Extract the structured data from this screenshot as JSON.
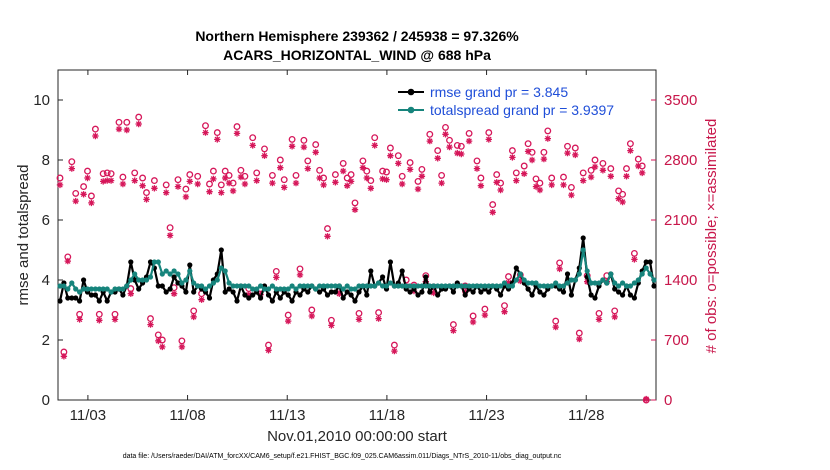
{
  "chart_data": {
    "type": "line",
    "title_line1": "Northern Hemisphere 239362 / 245938 = 97.326%",
    "title_line2": "ACARS_HORIZONTAL_WIND @ 688 hPa",
    "xlabel": "Nov.01,2010 00:00:00 start",
    "ylabel_left": "rmse and totalspread",
    "ylabel_right": "# of obs: o=possible; ×=assimilated",
    "xlim": [
      0.5,
      30.5
    ],
    "ylim_left": [
      0,
      11
    ],
    "ylim_right": [
      0,
      3850
    ],
    "x_ticks": [
      2,
      7,
      12,
      17,
      22,
      27
    ],
    "x_tick_labels": [
      "11/03",
      "11/08",
      "11/13",
      "11/18",
      "11/23",
      "11/28"
    ],
    "y_left_ticks": [
      0,
      2,
      4,
      6,
      8,
      10
    ],
    "y_right_ticks": [
      0,
      700,
      1400,
      2100,
      2800,
      3500
    ],
    "legend": [
      "rmse grand pr = 3.845",
      "totalspread grand pr = 3.9397"
    ],
    "colors": {
      "rmse": "#000000",
      "spread": "#16847c",
      "obs": "#d6175a",
      "axis": "#262626",
      "legend_text": "#1f4ed8"
    },
    "rmse": [
      3.3,
      3.9,
      3.4,
      3.4,
      3.4,
      3.3,
      4.0,
      3.6,
      3.5,
      3.5,
      3.3,
      3.6,
      3.3,
      3.6,
      3.6,
      3.7,
      3.5,
      3.8,
      4.6,
      4.0,
      3.7,
      3.9,
      4.1,
      4.6,
      4.4,
      3.8,
      3.8,
      3.6,
      3.7,
      4.1,
      3.9,
      3.8,
      3.6,
      4.5,
      3.6,
      3.8,
      3.7,
      3.6,
      3.4,
      4.0,
      4.2,
      5.0,
      3.6,
      3.7,
      3.6,
      3.3,
      3.8,
      3.5,
      3.4,
      3.5,
      3.6,
      3.4,
      3.8,
      3.5,
      3.3,
      3.6,
      3.4,
      3.6,
      3.5,
      3.3,
      3.6,
      3.5,
      3.7,
      3.6,
      3.8,
      3.7,
      3.6,
      3.7,
      3.5,
      3.6,
      3.6,
      3.8,
      3.4,
      3.6,
      3.5,
      3.3,
      3.6,
      3.8,
      3.5,
      4.3,
      3.8,
      3.9,
      4.1,
      3.7,
      4.6,
      3.8,
      3.9,
      4.3,
      3.7,
      3.6,
      3.7,
      3.5,
      3.6,
      4.1,
      3.6,
      3.8,
      3.5,
      3.7,
      3.7,
      3.8,
      3.6,
      3.9,
      3.8,
      3.5,
      3.7,
      3.6,
      3.8,
      3.6,
      3.7,
      3.6,
      3.8,
      3.7,
      3.5,
      3.8,
      3.7,
      3.9,
      4.4,
      4.2,
      3.9,
      3.7,
      3.5,
      3.8,
      3.6,
      3.5,
      3.7,
      3.8,
      3.8,
      3.7,
      3.6,
      4.2,
      3.5,
      4.0,
      4.4,
      5.4,
      4.1,
      3.5,
      3.4,
      3.8,
      4.0,
      3.9,
      4.2,
      3.7,
      3.6,
      3.5,
      3.8,
      3.5,
      3.4,
      3.9,
      4.3,
      4.6,
      4.6,
      3.8
    ],
    "spread": [
      3.8,
      3.8,
      3.7,
      3.9,
      3.7,
      3.6,
      3.7,
      3.7,
      3.7,
      3.7,
      3.7,
      3.7,
      3.7,
      3.6,
      3.7,
      3.7,
      3.7,
      3.8,
      4.0,
      4.2,
      4.0,
      4.0,
      4.0,
      4.1,
      4.6,
      4.6,
      4.2,
      4.3,
      4.2,
      4.3,
      4.2,
      3.9,
      4.0,
      4.3,
      3.9,
      3.8,
      3.8,
      3.7,
      3.8,
      3.9,
      4.0,
      4.4,
      4.3,
      3.9,
      3.8,
      3.8,
      3.8,
      3.8,
      3.8,
      3.7,
      3.7,
      3.8,
      3.7,
      3.7,
      3.8,
      3.7,
      3.7,
      3.7,
      3.7,
      3.8,
      3.7,
      3.8,
      3.8,
      3.8,
      3.8,
      3.7,
      3.8,
      3.8,
      3.8,
      3.8,
      3.8,
      3.8,
      3.7,
      3.8,
      3.7,
      3.7,
      3.8,
      3.8,
      3.8,
      3.8,
      3.8,
      3.9,
      3.8,
      3.8,
      3.9,
      3.8,
      3.8,
      3.8,
      3.8,
      3.8,
      3.8,
      3.8,
      3.8,
      3.8,
      3.8,
      3.8,
      3.8,
      3.8,
      3.8,
      3.8,
      3.8,
      3.8,
      3.8,
      3.8,
      3.8,
      3.8,
      3.8,
      3.8,
      3.8,
      3.8,
      3.8,
      3.8,
      3.8,
      3.9,
      3.8,
      3.8,
      4.0,
      4.2,
      4.0,
      3.9,
      3.9,
      3.9,
      3.8,
      3.8,
      3.8,
      3.8,
      3.9,
      3.8,
      3.8,
      3.9,
      4.0,
      4.0,
      4.2,
      5.0,
      4.3,
      3.9,
      3.9,
      3.9,
      4.0,
      3.9,
      4.2,
      3.9,
      3.8,
      3.9,
      3.8,
      3.8,
      3.9,
      4.0,
      4.2,
      4.4,
      4.2,
      4.0
    ],
    "obs_possible": [
      2590,
      560,
      1670,
      2780,
      2410,
      1000,
      2490,
      2670,
      2380,
      3160,
      1000,
      2640,
      2650,
      2640,
      1000,
      3240,
      2600,
      3240,
      1300,
      2650,
      3300,
      2590,
      2420,
      950,
      2560,
      760,
      700,
      2510,
      2010,
      1310,
      2570,
      690,
      2460,
      2630,
      1040,
      2610,
      1240,
      3200,
      2520,
      2670,
      3120,
      2510,
      2670,
      2620,
      2530,
      3190,
      2680,
      2610,
      1300,
      3060,
      2650,
      1300,
      2930,
      640,
      2620,
      1500,
      2800,
      2570,
      990,
      3040,
      2620,
      1530,
      3030,
      2790,
      1050,
      2980,
      2680,
      2590,
      2000,
      930,
      2630,
      1300,
      2760,
      2590,
      2630,
      2300,
      1010,
      2790,
      2670,
      2560,
      3060,
      1020,
      2670,
      2660,
      2940,
      640,
      2850,
      2610,
      1400,
      2770,
      1340,
      2550,
      2690,
      1450,
      3100,
      1320,
      2910,
      2620,
      3180,
      3030,
      880,
      2970,
      2960,
      1330,
      3110,
      980,
      2790,
      2590,
      1060,
      3120,
      2280,
      2630,
      2530,
      1100,
      1440,
      2910,
      2650,
      1460,
      2730,
      2990,
      2890,
      2580,
      2530,
      2890,
      3140,
      2590,
      920,
      1600,
      2600,
      2960,
      2480,
      2940,
      780,
      2650,
      1450,
      2680,
      2800,
      1010,
      2760,
      1450,
      2700,
      1040,
      2440,
      2400,
      2700,
      2990,
      1710,
      2810,
      2730,
      0
    ],
    "obs_assimilated": [
      2510,
      510,
      1620,
      2700,
      2320,
      940,
      2400,
      2590,
      2300,
      3080,
      930,
      2550,
      2560,
      2560,
      940,
      3160,
      2520,
      3150,
      1240,
      2560,
      3220,
      2500,
      2340,
      880,
      2470,
      690,
      620,
      2420,
      1920,
      1240,
      2490,
      620,
      2370,
      2550,
      970,
      2520,
      1170,
      3120,
      2430,
      2580,
      3040,
      2420,
      2590,
      2530,
      2440,
      3110,
      2600,
      2520,
      1230,
      2970,
      2560,
      1230,
      2850,
      580,
      2530,
      1430,
      2710,
      2480,
      920,
      2960,
      2530,
      1460,
      2950,
      2700,
      980,
      2890,
      2590,
      2510,
      1910,
      870,
      2540,
      1240,
      2670,
      2500,
      2550,
      2220,
      940,
      2710,
      2590,
      2470,
      2970,
      950,
      2580,
      2570,
      2850,
      570,
      2760,
      2520,
      1330,
      2690,
      1270,
      2460,
      2610,
      1380,
      3020,
      1250,
      2820,
      2530,
      3100,
      2950,
      810,
      2880,
      2870,
      1260,
      3020,
      910,
      2700,
      2500,
      990,
      3040,
      2190,
      2540,
      2450,
      1030,
      1370,
      2830,
      2560,
      1390,
      2640,
      2900,
      2800,
      2490,
      2450,
      2810,
      3050,
      2510,
      850,
      1530,
      2510,
      2880,
      2390,
      2860,
      710,
      2560,
      1380,
      2600,
      2720,
      940,
      2680,
      1380,
      2610,
      970,
      2350,
      2310,
      2610,
      2910,
      1640,
      2730,
      2650,
      10
    ]
  },
  "footer": {
    "note": "data file: /Users/raeder/DAI/ATM_forcXX/CAM6_setup/f.e21.FHIST_BGC.f09_025.CAM6assim.011/Diags_NTrS_2010-11/obs_diag_output.nc"
  }
}
